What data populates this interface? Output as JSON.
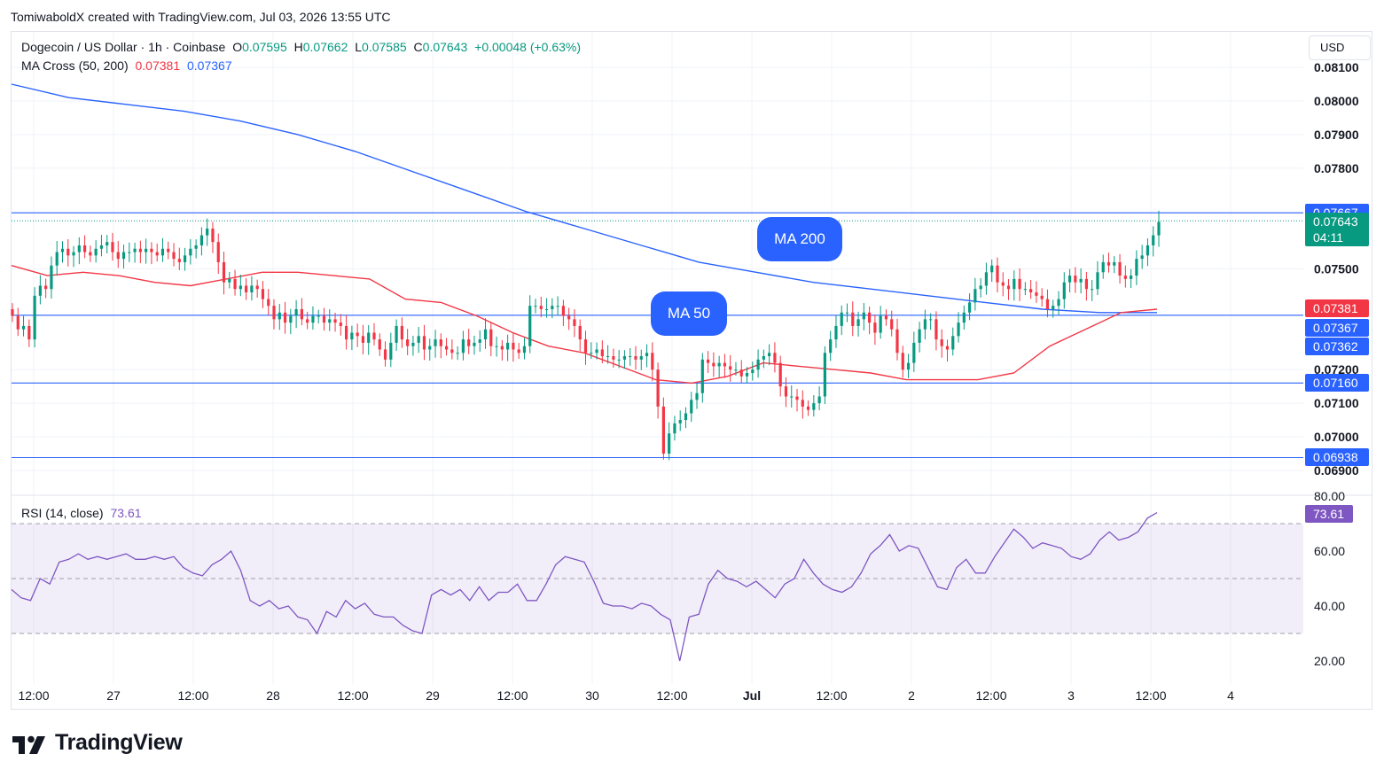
{
  "attribution": "TomiwaboldX created with TradingView.com, Jul 03, 2026 13:55 UTC",
  "legend": {
    "symbol": "Dogecoin / US Dollar · 1h · Coinbase",
    "open_label": "O",
    "open": "0.07595",
    "high_label": "H",
    "high": "0.07662",
    "low_label": "L",
    "low": "0.07585",
    "close_label": "C",
    "close": "0.07643",
    "change": "+0.00048 (+0.63%)",
    "ma_label": "MA Cross (50, 200)",
    "ma50_value": "0.07381",
    "ma200_value": "0.07367",
    "rsi_label": "RSI (14, close)",
    "rsi_value": "73.61"
  },
  "currency": "USD",
  "countdown": "04:11",
  "annotations": {
    "ma200": "MA 200",
    "ma50": "MA 50"
  },
  "brand": "TradingView",
  "colors": {
    "up": "#089981",
    "down": "#f23645",
    "ma50": "#f23645",
    "ma200": "#2962ff",
    "rsi": "#7e57c2",
    "level": "#2962ff"
  },
  "chart_data": [
    {
      "type": "candlestick",
      "title": "Dogecoin / US Dollar · 1h · Coinbase",
      "x_ticks": [
        "12:00",
        "27",
        "12:00",
        "28",
        "12:00",
        "29",
        "12:00",
        "30",
        "12:00",
        "Jul",
        "12:00",
        "2",
        "12:00",
        "3",
        "12:00",
        "4"
      ],
      "y_ticks": [
        "0.06900",
        "0.07000",
        "0.07100",
        "0.07200",
        "0.07500",
        "0.07800",
        "0.07900",
        "0.08000",
        "0.08100"
      ],
      "ylim": [
        0.0688,
        0.0812
      ],
      "horizontal_levels": [
        "0.07160",
        "0.06938",
        "0.07362",
        "0.07667"
      ],
      "price_labels": [
        {
          "value": "0.07667",
          "color": "#2962ff"
        },
        {
          "value": "0.07643",
          "color": "#089981"
        },
        {
          "value": "0.07381",
          "color": "#f23645"
        },
        {
          "value": "0.07367",
          "color": "#2962ff"
        },
        {
          "value": "0.07362",
          "color": "#2962ff"
        },
        {
          "value": "0.07160",
          "color": "#2962ff"
        },
        {
          "value": "0.06938",
          "color": "#2962ff"
        }
      ],
      "close_path": [
        0.0736,
        0.0732,
        0.0733,
        0.0729,
        0.0742,
        0.0745,
        0.0744,
        0.0751,
        0.0755,
        0.0756,
        0.0754,
        0.0755,
        0.0757,
        0.0755,
        0.0754,
        0.0756,
        0.0757,
        0.0758,
        0.0755,
        0.0753,
        0.0755,
        0.0755,
        0.0756,
        0.0755,
        0.0756,
        0.0755,
        0.0754,
        0.0756,
        0.0755,
        0.0753,
        0.0752,
        0.0754,
        0.0756,
        0.0757,
        0.076,
        0.0762,
        0.0758,
        0.0752,
        0.0746,
        0.0747,
        0.0744,
        0.0745,
        0.0743,
        0.0745,
        0.0744,
        0.0741,
        0.0739,
        0.0735,
        0.0737,
        0.0734,
        0.0736,
        0.0738,
        0.0735,
        0.0734,
        0.0736,
        0.0736,
        0.0734,
        0.0735,
        0.0734,
        0.0733,
        0.0729,
        0.0731,
        0.073,
        0.0728,
        0.0731,
        0.0729,
        0.0726,
        0.0723,
        0.0728,
        0.0733,
        0.0729,
        0.0727,
        0.0728,
        0.073,
        0.0726,
        0.0727,
        0.0729,
        0.0727,
        0.0726,
        0.0725,
        0.0725,
        0.0729,
        0.0727,
        0.0728,
        0.0729,
        0.0732,
        0.0727,
        0.0727,
        0.0726,
        0.0728,
        0.0726,
        0.0725,
        0.0727,
        0.0739,
        0.0739,
        0.0738,
        0.0738,
        0.0739,
        0.0739,
        0.0736,
        0.0735,
        0.0733,
        0.0729,
        0.0725,
        0.0725,
        0.0726,
        0.0724,
        0.0724,
        0.0723,
        0.0723,
        0.0724,
        0.0724,
        0.0723,
        0.0724,
        0.0725,
        0.072,
        0.0709,
        0.0695,
        0.0701,
        0.0704,
        0.0705,
        0.0707,
        0.0711,
        0.0713,
        0.0723,
        0.0722,
        0.0721,
        0.0722,
        0.0721,
        0.072,
        0.072,
        0.0718,
        0.0719,
        0.072,
        0.0723,
        0.0724,
        0.0725,
        0.0722,
        0.0715,
        0.0712,
        0.0712,
        0.0711,
        0.0709,
        0.0708,
        0.071,
        0.0712,
        0.0725,
        0.0729,
        0.0733,
        0.0737,
        0.0737,
        0.0733,
        0.0735,
        0.0737,
        0.0734,
        0.0731,
        0.0736,
        0.0735,
        0.0732,
        0.0725,
        0.072,
        0.0722,
        0.0728,
        0.0732,
        0.0735,
        0.0735,
        0.0729,
        0.0727,
        0.0726,
        0.073,
        0.0734,
        0.0737,
        0.074,
        0.0744,
        0.0745,
        0.0749,
        0.0751,
        0.0746,
        0.0745,
        0.0744,
        0.0747,
        0.0744,
        0.0744,
        0.0743,
        0.0742,
        0.0741,
        0.0738,
        0.0739,
        0.0741,
        0.0746,
        0.0748,
        0.0746,
        0.0747,
        0.0744,
        0.0744,
        0.0749,
        0.0752,
        0.0751,
        0.0752,
        0.0748,
        0.0747,
        0.0748,
        0.0753,
        0.0754,
        0.0757,
        0.076,
        0.0764
      ],
      "series": [
        {
          "name": "MA 50",
          "color": "#f23645",
          "values": [
            0.0751,
            0.0748,
            0.0749,
            0.0748,
            0.0746,
            0.0745,
            0.0747,
            0.0749,
            0.0749,
            0.0748,
            0.0747,
            0.0741,
            0.074,
            0.0736,
            0.0731,
            0.0727,
            0.0725,
            0.0721,
            0.0717,
            0.0716,
            0.0718,
            0.0722,
            0.0721,
            0.072,
            0.0719,
            0.0717,
            0.0717,
            0.0717,
            0.0719,
            0.0727,
            0.0732,
            0.0737,
            0.0738
          ]
        },
        {
          "name": "MA 200",
          "color": "#2962ff",
          "values": [
            0.0805,
            0.0801,
            0.0799,
            0.0797,
            0.0794,
            0.079,
            0.0785,
            0.0779,
            0.0773,
            0.0767,
            0.0762,
            0.0757,
            0.0752,
            0.0749,
            0.0746,
            0.0744,
            0.0742,
            0.074,
            0.0738,
            0.0737,
            0.0737
          ]
        }
      ]
    },
    {
      "type": "line",
      "title": "RSI (14, close)",
      "y_ticks": [
        "20.00",
        "40.00",
        "60.00",
        "80.00"
      ],
      "ylim": [
        14,
        82
      ],
      "bands": [
        30,
        50,
        70
      ],
      "last_value": 73.61,
      "series": [
        {
          "name": "RSI (14, close)",
          "color": "#7e57c2",
          "values": [
            46,
            43,
            42,
            50,
            48,
            56,
            57,
            59,
            57,
            58,
            57,
            58,
            59,
            57,
            57,
            58,
            57,
            58,
            54,
            52,
            51,
            55,
            57,
            60,
            53,
            42,
            40,
            42,
            39,
            40,
            36,
            35,
            30,
            38,
            36,
            42,
            39,
            41,
            37,
            36,
            36,
            33,
            31,
            30,
            44,
            46,
            44,
            46,
            42,
            47,
            42,
            45,
            45,
            48,
            42,
            42,
            48,
            55,
            58,
            57,
            56,
            49,
            41,
            40,
            40,
            39,
            41,
            40,
            37,
            35,
            20,
            36,
            37,
            48,
            53,
            50,
            49,
            47,
            49,
            46,
            43,
            48,
            50,
            57,
            52,
            48,
            46,
            45,
            47,
            52,
            59,
            62,
            66,
            60,
            62,
            61,
            54,
            47,
            46,
            54,
            57,
            52,
            52,
            58,
            63,
            68,
            65,
            61,
            63,
            62,
            61,
            58,
            57,
            59,
            64,
            67,
            64,
            65,
            67,
            72,
            74
          ]
        }
      ]
    }
  ]
}
